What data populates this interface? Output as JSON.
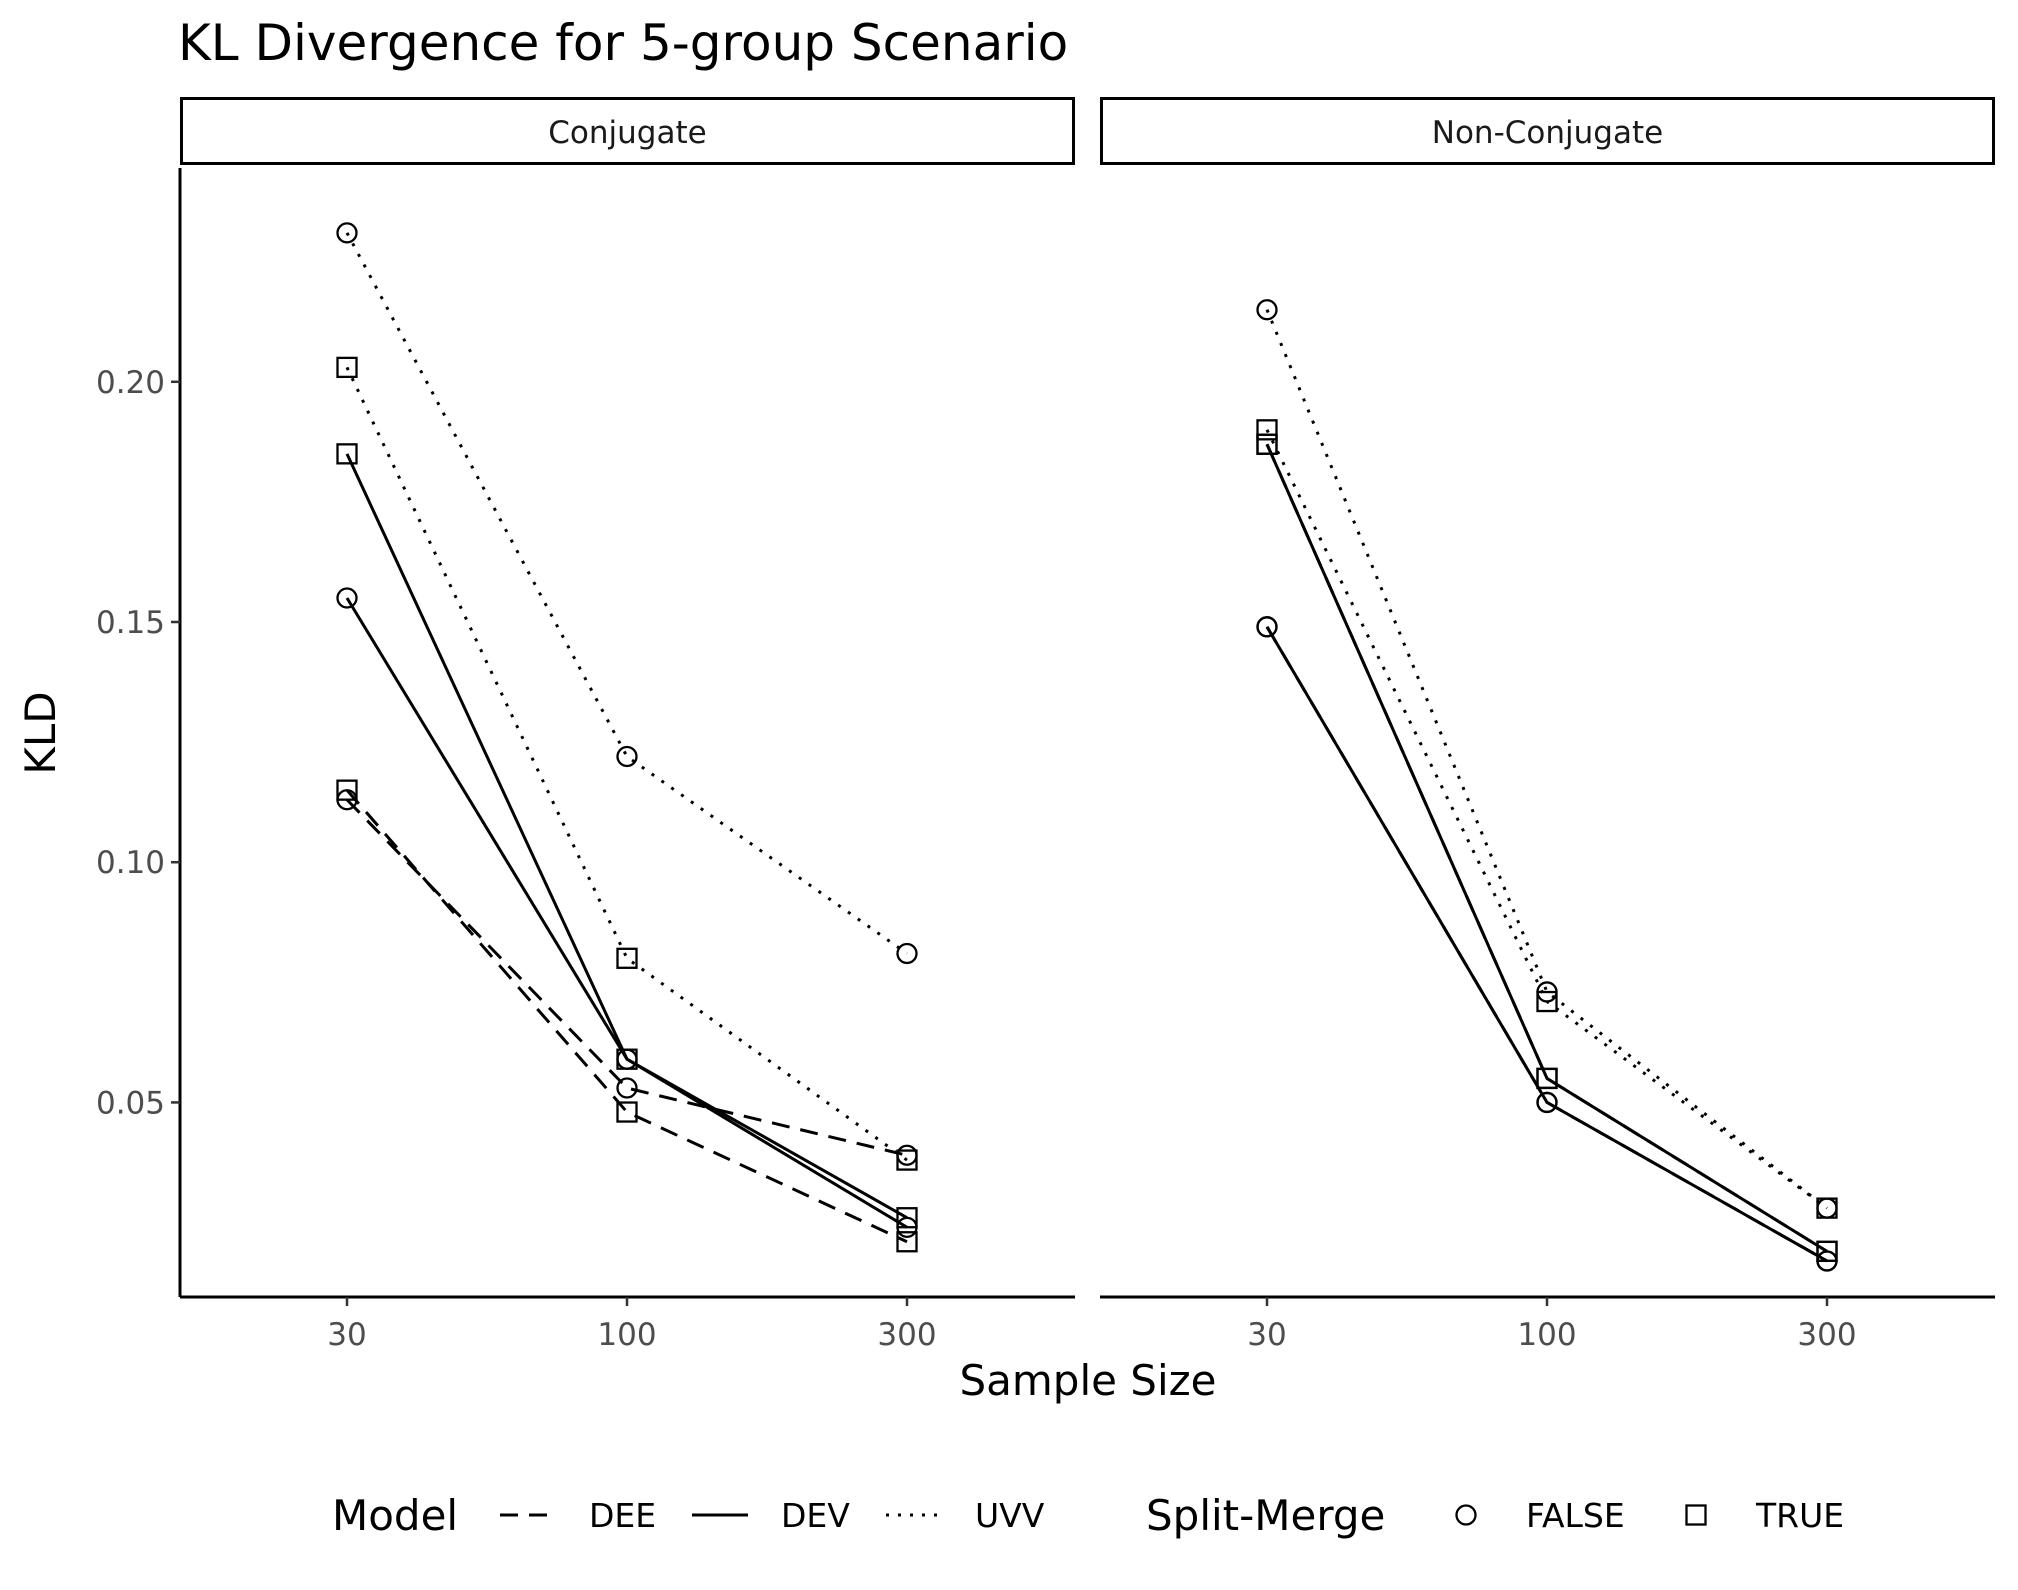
{
  "chart_data": {
    "type": "line",
    "title": "KL Divergence for 5-group Scenario",
    "xlabel": "Sample Size",
    "ylabel": "KLD",
    "x_categories": [
      "30",
      "100",
      "300"
    ],
    "y_ticks": [
      0.05,
      0.1,
      0.15,
      0.2
    ],
    "y_tick_labels": [
      "0.05",
      "0.10",
      "0.15",
      "0.20"
    ],
    "ylim": [
      0.0095,
      0.2445
    ],
    "grid": false,
    "legend_position": "bottom",
    "legend": {
      "model_title": "Model",
      "model_entries": [
        {
          "label": "DEE",
          "linetype": "dashed"
        },
        {
          "label": "DEV",
          "linetype": "solid"
        },
        {
          "label": "UVV",
          "linetype": "dotted"
        }
      ],
      "split_title": "Split-Merge",
      "split_entries": [
        {
          "label": "FALSE",
          "shape": "circle"
        },
        {
          "label": "TRUE",
          "shape": "square"
        }
      ]
    },
    "panels": [
      {
        "label": "Conjugate",
        "series": [
          {
            "model": "DEE",
            "split_merge": "FALSE",
            "values": [
              0.113,
              0.053,
              0.039
            ]
          },
          {
            "model": "DEE",
            "split_merge": "TRUE",
            "values": [
              0.115,
              0.048,
              0.021
            ]
          },
          {
            "model": "DEV",
            "split_merge": "FALSE",
            "values": [
              0.155,
              0.059,
              0.024
            ]
          },
          {
            "model": "DEV",
            "split_merge": "TRUE",
            "values": [
              0.185,
              0.059,
              0.026
            ]
          },
          {
            "model": "UVV",
            "split_merge": "FALSE",
            "values": [
              0.231,
              0.122,
              0.081
            ]
          },
          {
            "model": "UVV",
            "split_merge": "TRUE",
            "values": [
              0.203,
              0.08,
              0.038
            ]
          }
        ]
      },
      {
        "label": "Non-Conjugate",
        "series": [
          {
            "model": "DEE",
            "split_merge": "FALSE",
            "values": [
              0.149,
              0.05,
              0.017
            ]
          },
          {
            "model": "DEE",
            "split_merge": "TRUE",
            "values": [
              0.187,
              0.055,
              0.019
            ]
          },
          {
            "model": "DEV",
            "split_merge": "FALSE",
            "values": [
              0.149,
              0.05,
              0.017
            ]
          },
          {
            "model": "DEV",
            "split_merge": "TRUE",
            "values": [
              0.187,
              0.055,
              0.019
            ]
          },
          {
            "model": "UVV",
            "split_merge": "FALSE",
            "values": [
              0.215,
              0.073,
              0.028
            ]
          },
          {
            "model": "UVV",
            "split_merge": "TRUE",
            "values": [
              0.19,
              0.071,
              0.028
            ]
          }
        ]
      }
    ]
  }
}
